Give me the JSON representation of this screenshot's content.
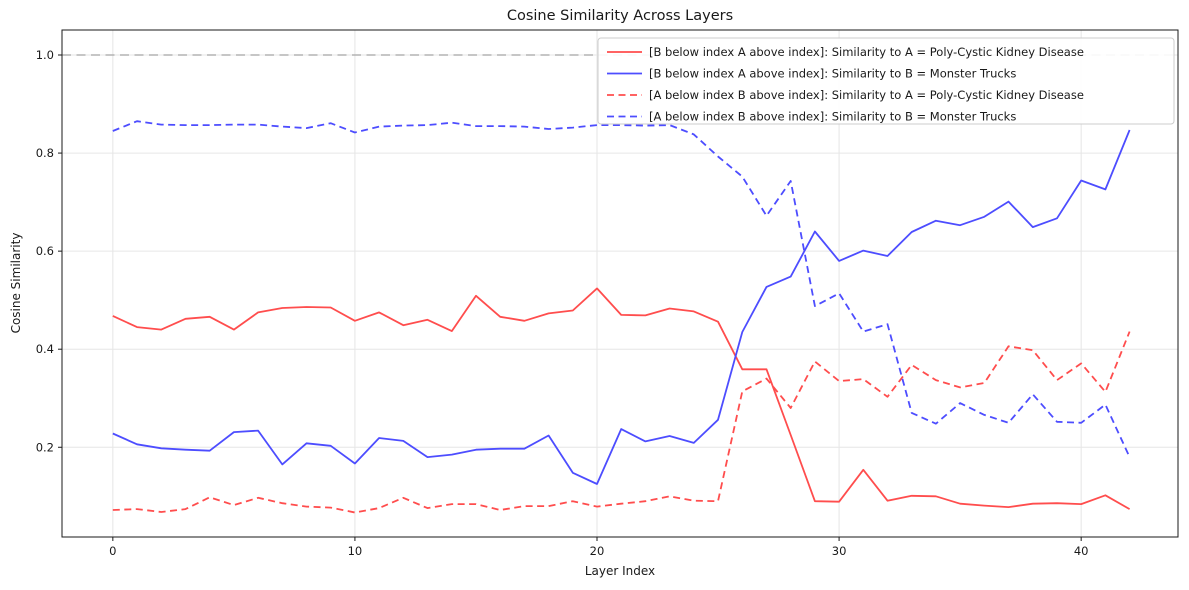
{
  "figure": {
    "title": "Cosine Similarity Across Layers",
    "xlabel": "Layer Index",
    "ylabel": "Cosine Similarity"
  },
  "chart_data": {
    "type": "line",
    "title": "Cosine Similarity Across Layers",
    "xlabel": "Layer Index",
    "ylabel": "Cosine Similarity",
    "grid": true,
    "legend_position": "upper right",
    "x_ticks": [
      0,
      10,
      20,
      30,
      40
    ],
    "y_ticks": [
      0.2,
      0.4,
      0.6,
      0.8,
      1.0
    ],
    "xlim": [
      -2.1,
      44.0
    ],
    "ylim": [
      0.017,
      1.051
    ],
    "reference_line": {
      "y": 1.0,
      "style": "dashed",
      "color": "#b3b3b3"
    },
    "x": [
      0,
      1,
      2,
      3,
      4,
      5,
      6,
      7,
      8,
      9,
      10,
      11,
      12,
      13,
      14,
      15,
      16,
      17,
      18,
      19,
      20,
      21,
      22,
      23,
      24,
      25,
      26,
      27,
      28,
      29,
      30,
      31,
      32,
      33,
      34,
      35,
      36,
      37,
      38,
      39,
      40,
      41,
      42
    ],
    "series": [
      {
        "name": "[B below index A above index]: Similarity to A = Poly-Cystic Kidney Disease",
        "color": "#ff4d4d",
        "style": "solid",
        "values": [
          0.468,
          0.445,
          0.44,
          0.462,
          0.466,
          0.44,
          0.475,
          0.484,
          0.486,
          0.485,
          0.458,
          0.475,
          0.449,
          0.46,
          0.437,
          0.509,
          0.466,
          0.458,
          0.473,
          0.479,
          0.524,
          0.47,
          0.469,
          0.483,
          0.477,
          0.456,
          0.359,
          0.359,
          0.225,
          0.09,
          0.089,
          0.154,
          0.091,
          0.101,
          0.1,
          0.085,
          0.081,
          0.078,
          0.085,
          0.086,
          0.084,
          0.102,
          0.074
        ]
      },
      {
        "name": "[B below index A above index]: Similarity to B = Monster Trucks",
        "color": "#4d4dff",
        "style": "solid",
        "values": [
          0.228,
          0.206,
          0.198,
          0.195,
          0.193,
          0.231,
          0.234,
          0.165,
          0.208,
          0.203,
          0.167,
          0.219,
          0.213,
          0.18,
          0.185,
          0.195,
          0.197,
          0.197,
          0.224,
          0.148,
          0.125,
          0.237,
          0.212,
          0.223,
          0.209,
          0.256,
          0.435,
          0.527,
          0.548,
          0.64,
          0.58,
          0.601,
          0.59,
          0.639,
          0.662,
          0.653,
          0.67,
          0.701,
          0.649,
          0.667,
          0.744,
          0.726,
          0.847
        ]
      },
      {
        "name": "[A below index B above index]: Similarity to A = Poly-Cystic Kidney Disease",
        "color": "#ff4d4d",
        "style": "dashed",
        "values": [
          0.072,
          0.074,
          0.068,
          0.074,
          0.098,
          0.082,
          0.097,
          0.086,
          0.079,
          0.077,
          0.067,
          0.076,
          0.097,
          0.076,
          0.084,
          0.084,
          0.072,
          0.08,
          0.08,
          0.09,
          0.079,
          0.085,
          0.09,
          0.1,
          0.091,
          0.09,
          0.314,
          0.34,
          0.28,
          0.375,
          0.335,
          0.339,
          0.303,
          0.368,
          0.337,
          0.322,
          0.331,
          0.406,
          0.398,
          0.337,
          0.371,
          0.313,
          0.436
        ]
      },
      {
        "name": "[A below index B above index]: Similarity to B = Monster Trucks",
        "color": "#4d4dff",
        "style": "dashed",
        "values": [
          0.845,
          0.865,
          0.858,
          0.857,
          0.857,
          0.858,
          0.858,
          0.854,
          0.851,
          0.861,
          0.842,
          0.854,
          0.856,
          0.857,
          0.862,
          0.855,
          0.855,
          0.854,
          0.849,
          0.852,
          0.857,
          0.857,
          0.856,
          0.857,
          0.838,
          0.793,
          0.752,
          0.672,
          0.743,
          0.488,
          0.514,
          0.436,
          0.451,
          0.27,
          0.248,
          0.29,
          0.266,
          0.25,
          0.308,
          0.252,
          0.25,
          0.287,
          0.18
        ]
      }
    ]
  },
  "style": {
    "grid_color": "#e6e6e6",
    "spine_color": "#1a1a1a",
    "background": "#ffffff",
    "legend_border": "#cccccc"
  }
}
